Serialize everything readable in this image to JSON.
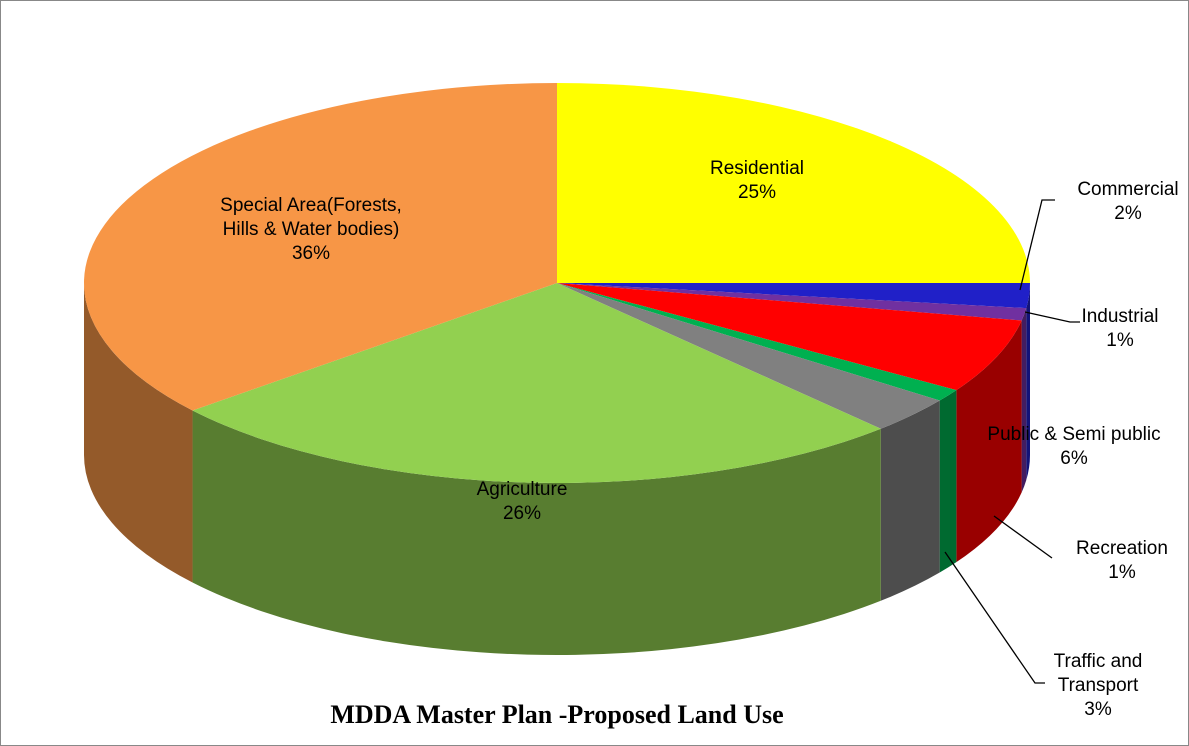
{
  "chart_data": {
    "type": "pie",
    "title": "MDDA Master Plan -Proposed Land Use",
    "categories": [
      "Residential",
      "Commercial",
      "Industrial",
      "Public & Semi public",
      "Recreation",
      "Traffic and Transport",
      "Agriculture",
      "Special Area(Forests, Hills & Water bodies)"
    ],
    "values": [
      25,
      2,
      1,
      6,
      1,
      3,
      26,
      36
    ],
    "value_labels": [
      "25%",
      "2%",
      "1%",
      "6%",
      "1%",
      "3%",
      "26%",
      "36%"
    ],
    "colors": [
      "#ffff00",
      "#2020c8",
      "#7030a0",
      "#ff0000",
      "#00b050",
      "#808080",
      "#92d050",
      "#f79646"
    ]
  }
}
